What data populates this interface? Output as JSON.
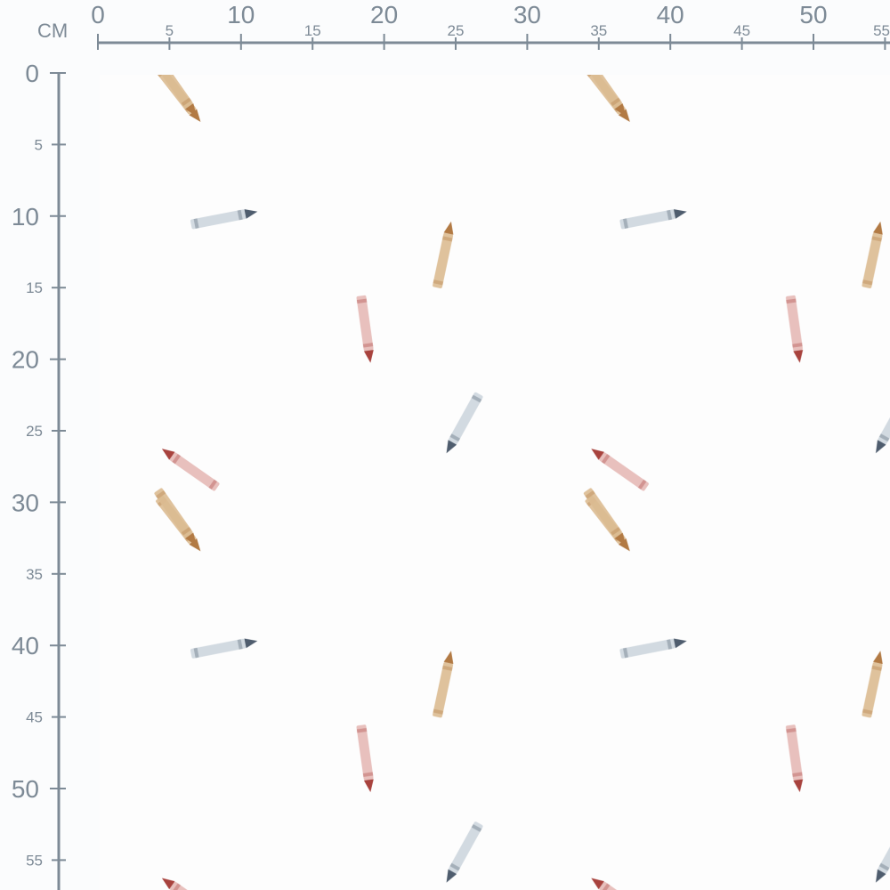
{
  "ruler": {
    "unit_label": "CM",
    "horizontal_labels": [
      "0",
      "5",
      "10",
      "15",
      "20",
      "25",
      "30",
      "35",
      "40",
      "45",
      "50",
      "55"
    ],
    "vertical_labels": [
      "0",
      "5",
      "10",
      "15",
      "20",
      "25",
      "30",
      "35",
      "40",
      "45",
      "50",
      "55"
    ],
    "color": "#7d8a96"
  },
  "pattern": {
    "repeat_cm": 30,
    "crayon_colors": {
      "tan": {
        "body": "#dcbc91",
        "tip": "#b27a44"
      },
      "gray": {
        "body": "#cdd6de",
        "tip": "#4f5d6e"
      },
      "pink": {
        "body": "#e6b9b6",
        "tip": "#a8433e"
      }
    }
  }
}
